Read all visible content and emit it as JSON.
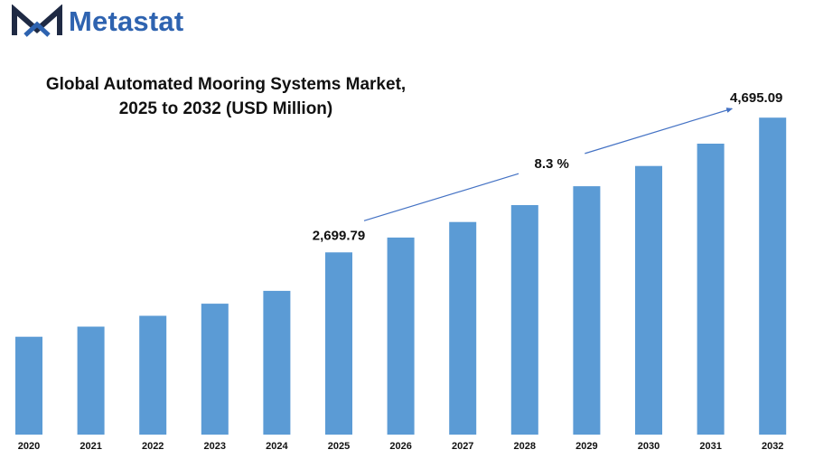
{
  "brand": {
    "name": "Metastat",
    "logo_icon": "m-chevron-logo",
    "color": "#2e63b0"
  },
  "chart_data": {
    "type": "bar",
    "title_line1": "Global Automated Mooring Systems Market,",
    "title_line2": "2025 to 2032 (USD Million)",
    "categories": [
      "2020",
      "2021",
      "2022",
      "2023",
      "2024",
      "2025",
      "2026",
      "2027",
      "2028",
      "2029",
      "2030",
      "2031",
      "2032"
    ],
    "values": [
      1450,
      1600,
      1760,
      1940,
      2130,
      2699.79,
      2920,
      3150,
      3400,
      3680,
      3980,
      4310,
      4695.09
    ],
    "ylim": [
      0,
      5100
    ],
    "bar_color": "#5b9bd5",
    "grid": false,
    "annotations": {
      "start_label": "2,699.79",
      "end_label": "4,695.09",
      "cagr_label": "8.3  %",
      "arrow_color": "#4472c4"
    }
  }
}
